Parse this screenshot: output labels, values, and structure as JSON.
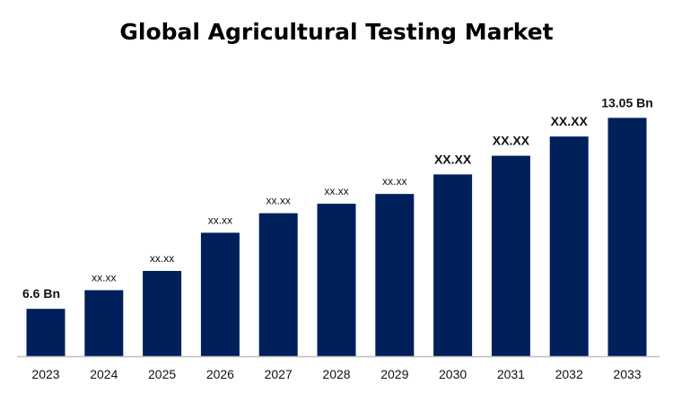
{
  "chart_data": {
    "type": "bar",
    "title": "Global Agricultural Testing Market",
    "xlabel": "",
    "ylabel": "",
    "categories": [
      "2023",
      "2024",
      "2025",
      "2026",
      "2027",
      "2028",
      "2029",
      "2030",
      "2031",
      "2032",
      "2033"
    ],
    "values": [
      6.6,
      7.23,
      7.88,
      9.17,
      9.83,
      10.15,
      10.48,
      11.14,
      11.77,
      12.42,
      13.05
    ],
    "data_labels": [
      "6.6 Bn",
      "xx.xx",
      "xx.xx",
      "xx.xx",
      "xx.xx",
      "xx.xx",
      "xx.xx",
      "XX.XX",
      "XX.XX",
      "XX.XX",
      "13.05 Bn"
    ],
    "ylim": [
      5,
      14
    ],
    "grid": false,
    "y_axis_visible": false,
    "legend": "none",
    "colors": {
      "bar": "#00205B",
      "axis": "#BFBFBF"
    }
  }
}
